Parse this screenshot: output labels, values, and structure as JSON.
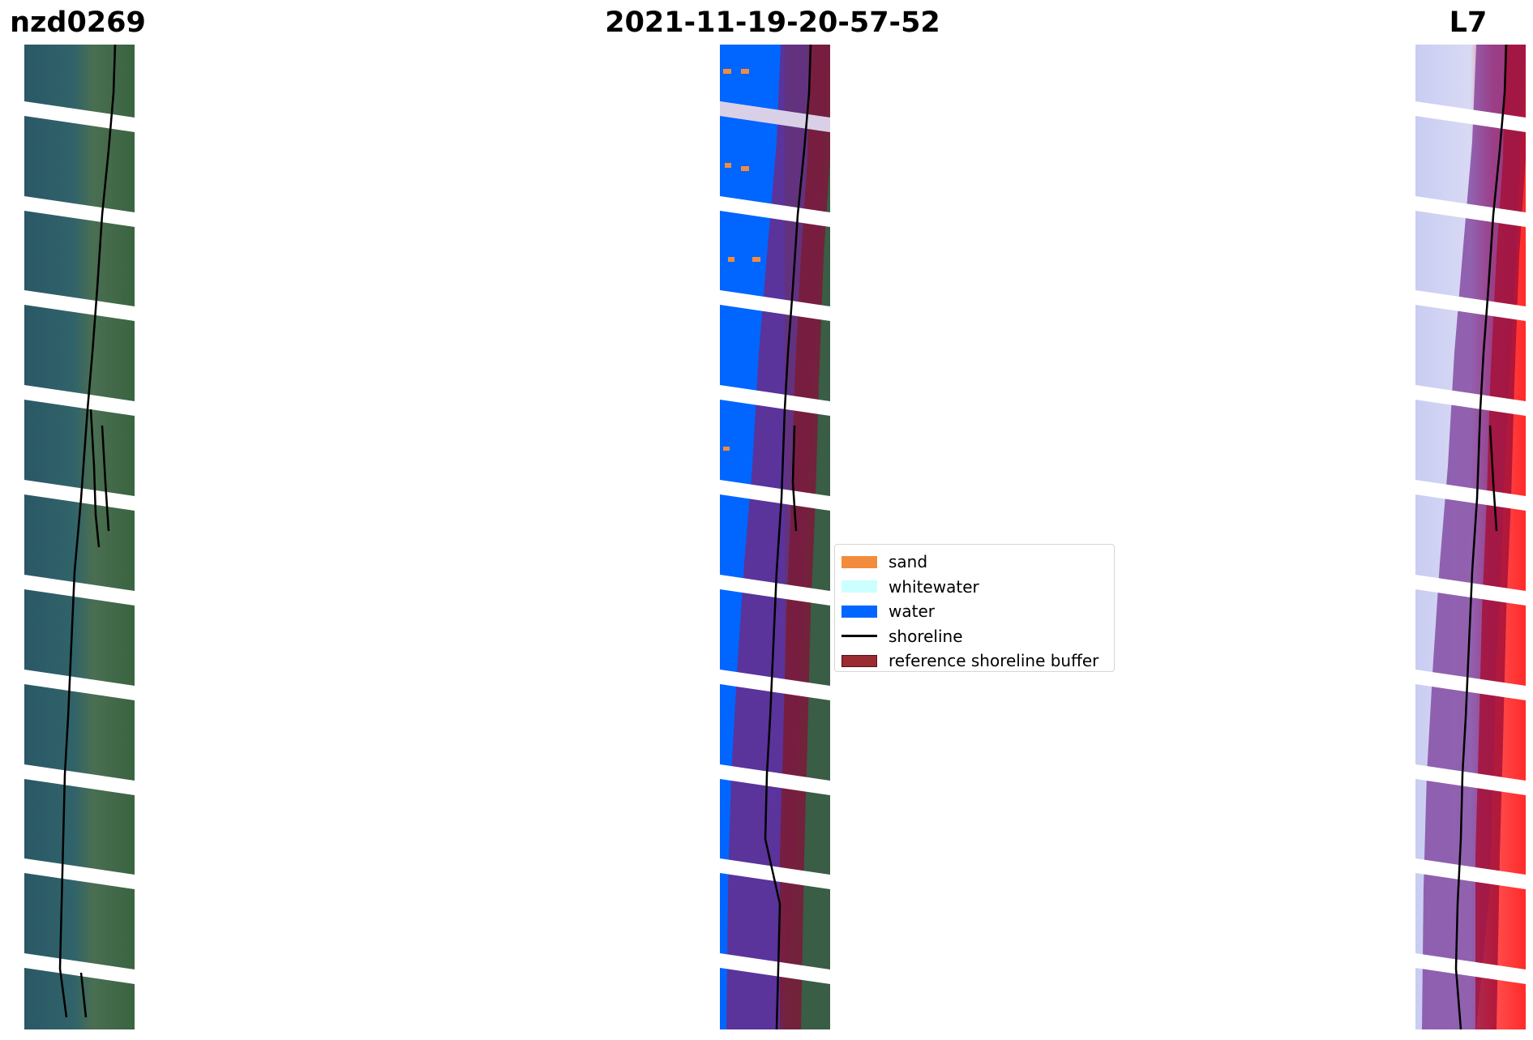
{
  "titles": {
    "site_id": "nzd0269",
    "date": "2021-11-19-20-57-52",
    "satellite": "L7"
  },
  "legend": {
    "items": [
      {
        "label": "sand",
        "color": "#f28c3c",
        "kind": "patch"
      },
      {
        "label": "whitewater",
        "color": "#ccffff",
        "kind": "patch"
      },
      {
        "label": "water",
        "color": "#0066ff",
        "kind": "patch"
      },
      {
        "label": "shoreline",
        "color": "#000000",
        "kind": "line"
      },
      {
        "label": "reference shoreline buffer",
        "color": "#9a2b33",
        "kind": "patch-outlined"
      }
    ]
  },
  "colors": {
    "stripe_gap": "#ffffff",
    "rgb_sea": "#2c5d6b",
    "rgb_land": "#3f6a45",
    "water_class": "#0066ff",
    "buffer_overlay": "#8a1c5e",
    "index_low": "#c9cdf2",
    "index_high": "#ff2a2a"
  }
}
